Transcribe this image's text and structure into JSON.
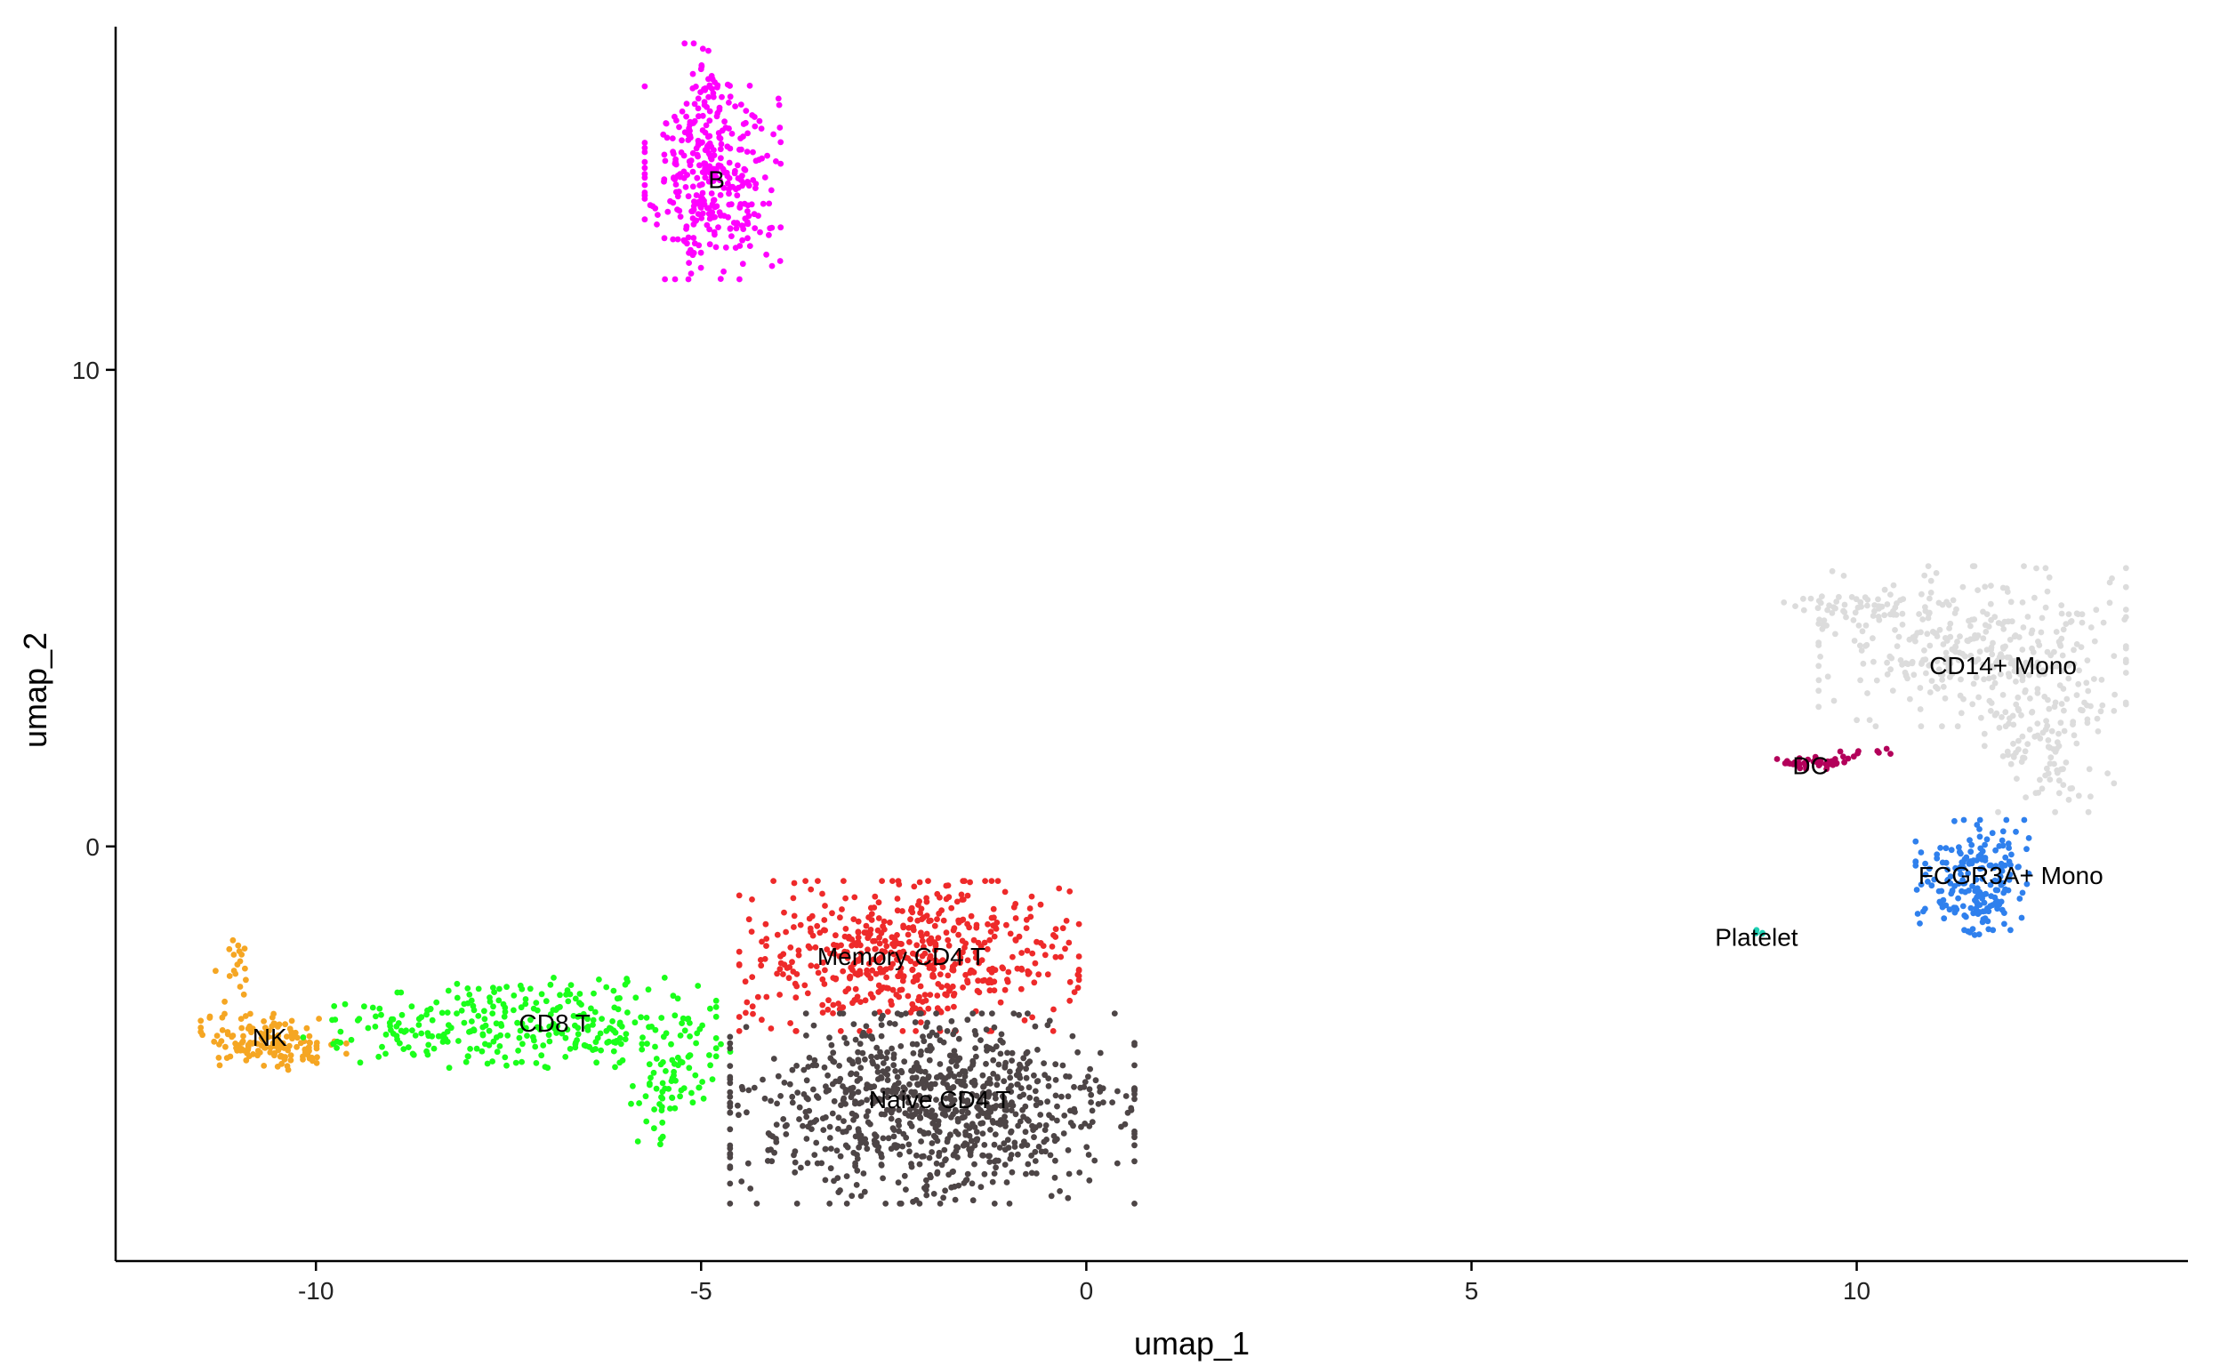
{
  "chart_data": {
    "type": "scatter",
    "title": "",
    "xlabel": "umap_1",
    "ylabel": "umap_2",
    "xlim": [
      -12.6,
      14.3
    ],
    "ylim": [
      -8.7,
      17.2
    ],
    "x_ticks": [
      -10,
      -5,
      0,
      5,
      10
    ],
    "y_ticks": [
      0,
      10
    ],
    "grid": false,
    "legend": "none",
    "series": [
      {
        "name": "B",
        "color": "#ff00ff",
        "label_pos": [
          -4.8,
          14
        ],
        "clusters": [
          {
            "cx": -4.85,
            "cy": 14.0,
            "sx": 0.42,
            "sy": 1.0,
            "n": 340
          },
          {
            "cx": -5.0,
            "cy": 15.8,
            "sx": 0.2,
            "sy": 0.5,
            "n": 40
          }
        ]
      },
      {
        "name": "NK",
        "color": "#f5a623",
        "label_pos": [
          -10.6,
          -4
        ],
        "clusters": [
          {
            "cx": -10.55,
            "cy": -4.1,
            "sx": 0.45,
            "sy": 0.28,
            "n": 150
          },
          {
            "cx": -11.05,
            "cy": -2.6,
            "sx": 0.12,
            "sy": 0.4,
            "n": 18
          }
        ]
      },
      {
        "name": "CD8 T",
        "color": "#1aff1a",
        "label_pos": [
          -6.9,
          -3.7
        ],
        "clusters": [
          {
            "cx": -6.8,
            "cy": -3.7,
            "sx": 0.95,
            "sy": 0.45,
            "n": 230
          },
          {
            "cx": -8.8,
            "cy": -3.8,
            "sx": 0.65,
            "sy": 0.35,
            "n": 75
          },
          {
            "cx": -5.5,
            "cy": -5.2,
            "sx": 0.3,
            "sy": 0.5,
            "n": 50
          },
          {
            "cx": -5.0,
            "cy": -4.2,
            "sx": 0.18,
            "sy": 0.8,
            "n": 22
          }
        ]
      },
      {
        "name": "Memory CD4 T",
        "color": "#ee2a2a",
        "label_pos": [
          -2.4,
          -2.3
        ],
        "clusters": [
          {
            "cx": -2.3,
            "cy": -2.3,
            "sx": 1.05,
            "sy": 0.75,
            "n": 540
          }
        ]
      },
      {
        "name": "Naive CD4 T",
        "color": "#4d4546",
        "label_pos": [
          -1.9,
          -5.3
        ],
        "clusters": [
          {
            "cx": -2.0,
            "cy": -5.5,
            "sx": 1.25,
            "sy": 0.95,
            "n": 900
          }
        ]
      },
      {
        "name": "CD14+ Mono",
        "color": "#dcdcdc",
        "label_pos": [
          11.9,
          3.8
        ],
        "clusters": [
          {
            "cx": 11.5,
            "cy": 4.2,
            "sx": 0.95,
            "sy": 0.8,
            "n": 330
          },
          {
            "cx": 10.0,
            "cy": 5.0,
            "sx": 0.45,
            "sy": 0.2,
            "n": 55
          },
          {
            "cx": 12.5,
            "cy": 2.4,
            "sx": 0.4,
            "sy": 0.8,
            "n": 120
          }
        ]
      },
      {
        "name": "FCGR3A+ Mono",
        "color": "#2f80ed",
        "label_pos": [
          12.0,
          -0.6
        ],
        "clusters": [
          {
            "cx": 11.5,
            "cy": -0.6,
            "sx": 0.35,
            "sy": 0.55,
            "n": 160
          },
          {
            "cx": 11.6,
            "cy": -1.4,
            "sx": 0.15,
            "sy": 0.3,
            "n": 35
          }
        ]
      },
      {
        "name": "DC",
        "color": "#b3005a",
        "label_pos": [
          9.4,
          1.7
        ],
        "clusters": [
          {
            "cx": 9.4,
            "cy": 1.75,
            "sx": 0.22,
            "sy": 0.06,
            "n": 40
          },
          {
            "cx": 10.1,
            "cy": 1.95,
            "sx": 0.25,
            "sy": 0.06,
            "n": 10
          }
        ]
      },
      {
        "name": "Platelet",
        "color": "#1fd1b4",
        "label_pos": [
          8.7,
          -1.9
        ],
        "clusters": [
          {
            "cx": 8.72,
            "cy": -1.8,
            "sx": 0.04,
            "sy": 0.03,
            "n": 5
          }
        ]
      }
    ]
  }
}
